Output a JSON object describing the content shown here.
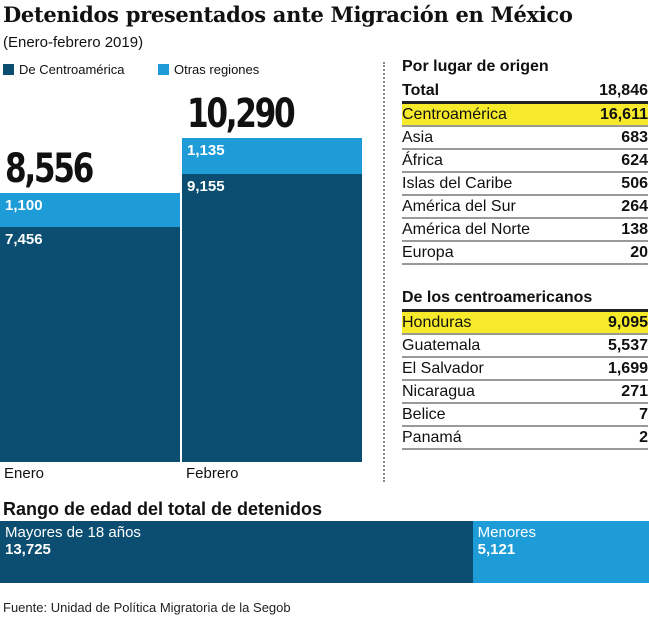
{
  "title": "Detenidos presentados ante Migración en México",
  "subtitle": "(Enero-febrero 2019)",
  "colors": {
    "centroamerica": "#0b4e72",
    "otras": "#1e9cd7",
    "highlight": "#f6ea2a"
  },
  "chart_data": [
    {
      "type": "bar",
      "stacked": true,
      "categories": [
        "Enero",
        "Febrero"
      ],
      "totals": [
        "8,556",
        "10,290"
      ],
      "series": [
        {
          "name": "De Centroamérica",
          "values": [
            7456,
            9155
          ],
          "labels": [
            "7,456",
            "9,155"
          ]
        },
        {
          "name": "Otras regiones",
          "values": [
            1100,
            1135
          ],
          "labels": [
            "1,100",
            "1,135"
          ]
        }
      ]
    },
    {
      "type": "bar",
      "stacked": true,
      "title": "Rango de edad del total de detenidos",
      "series": [
        {
          "name": "Mayores de 18 años",
          "values": [
            13725
          ],
          "label": "13,725"
        },
        {
          "name": "Menores",
          "values": [
            5121
          ],
          "label": "5,121"
        }
      ]
    }
  ],
  "origin": {
    "heading": "Por lugar de origen",
    "total": {
      "label": "Total",
      "value": "18,846"
    },
    "rows": [
      {
        "label": "Centroamérica",
        "value": "16,611",
        "highlight": true
      },
      {
        "label": "Asia",
        "value": "683"
      },
      {
        "label": "África",
        "value": "624"
      },
      {
        "label": "Islas del Caribe",
        "value": "506"
      },
      {
        "label": "América del Sur",
        "value": "264"
      },
      {
        "label": "América del Norte",
        "value": "138"
      },
      {
        "label": "Europa",
        "value": "20"
      }
    ]
  },
  "central": {
    "heading": "De los centroamericanos",
    "rows": [
      {
        "label": "Honduras",
        "value": "9,095",
        "highlight": true
      },
      {
        "label": "Guatemala",
        "value": "5,537"
      },
      {
        "label": "El Salvador",
        "value": "1,699"
      },
      {
        "label": "Nicaragua",
        "value": "271"
      },
      {
        "label": "Belice",
        "value": "7"
      },
      {
        "label": "Panamá",
        "value": "2"
      }
    ]
  },
  "source": "Fuente: Unidad de Política Migratoria de la Segob"
}
